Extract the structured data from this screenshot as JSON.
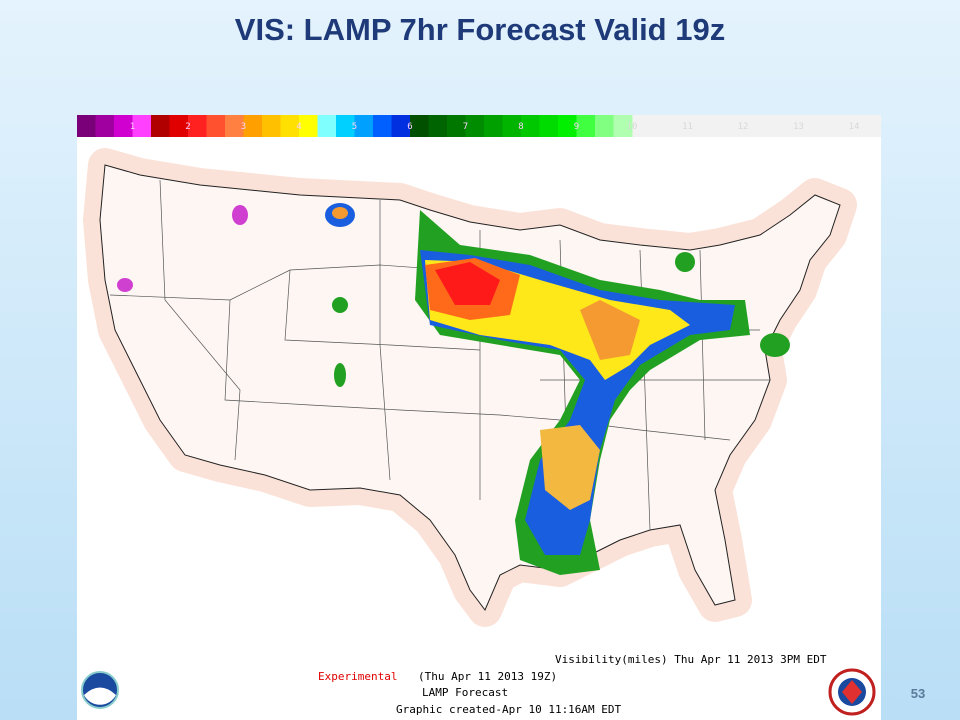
{
  "title": "VIS: LAMP 7hr Forecast Valid 19z",
  "colorbar": {
    "labels": [
      1,
      2,
      3,
      4,
      5,
      6,
      7,
      8,
      9,
      10,
      11,
      12,
      13,
      14
    ],
    "colors": [
      "#7a007a",
      "#a000a0",
      "#d000d0",
      "#ff40ff",
      "#b00000",
      "#e00000",
      "#ff2020",
      "#ff5030",
      "#ff8040",
      "#ffa000",
      "#ffc000",
      "#ffe000",
      "#ffff00",
      "#80ffff",
      "#00d0ff",
      "#00a0ff",
      "#0060ff",
      "#0030e0",
      "#005000",
      "#006400",
      "#007800",
      "#008c00",
      "#00a000",
      "#00b400",
      "#00c800",
      "#00dc00",
      "#00f000",
      "#40ff40",
      "#80ff80",
      "#b0ffb0"
    ],
    "rest_color": "#f2f2f2"
  },
  "footer": {
    "product": "Visibility(miles) Thu Apr 11 2013  3PM EDT",
    "status": "Experimental",
    "valid": "(Thu Apr 11 2013 19Z)",
    "name": "LAMP Forecast",
    "created": "Graphic created-Apr 10 11:16AM EDT"
  },
  "page_number": "53"
}
